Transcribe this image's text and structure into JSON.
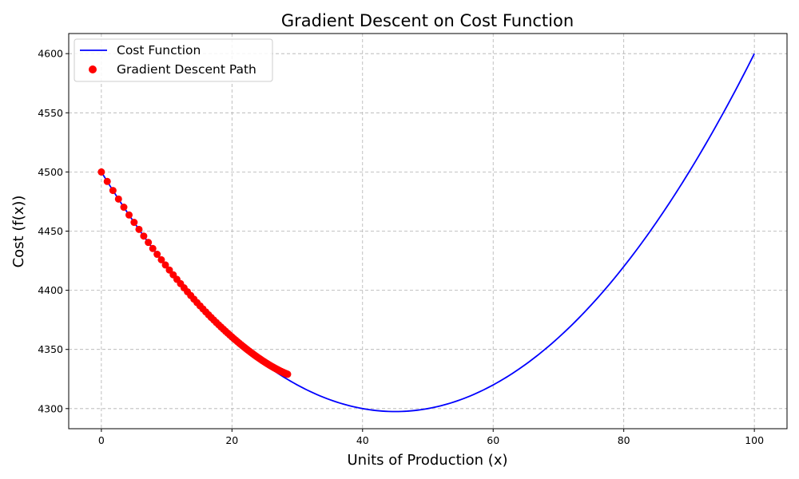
{
  "chart_data": {
    "type": "line",
    "title": "Gradient Descent on Cost Function",
    "xlabel": "Units of Production (x)",
    "ylabel": "Cost (f(x))",
    "xlim": [
      -5,
      105
    ],
    "ylim": [
      4283,
      4617
    ],
    "x_ticks": [
      0,
      20,
      40,
      60,
      80,
      100
    ],
    "y_ticks": [
      4300,
      4350,
      4400,
      4450,
      4500,
      4550,
      4600
    ],
    "x_tick_labels": [
      "0",
      "20",
      "40",
      "60",
      "80",
      "100"
    ],
    "y_tick_labels": [
      "4300",
      "4350",
      "4400",
      "4450",
      "4500",
      "4550",
      "4600"
    ],
    "grid": true,
    "legend_position": "top-left",
    "series": [
      {
        "name": "Cost Function",
        "kind": "line",
        "color": "#0000ff",
        "function": {
          "form": "quadratic",
          "a": 0.1,
          "b": -9,
          "c": 4500
        },
        "x_range": [
          0,
          100
        ]
      },
      {
        "name": "Gradient Descent Path",
        "kind": "scatter",
        "color": "#ff0000",
        "x": [
          0,
          0.9,
          1.773,
          2.62,
          3.441,
          4.238,
          5.011,
          5.761,
          6.488,
          7.193,
          7.877,
          8.541,
          9.185,
          9.809,
          10.415,
          11.002,
          11.572,
          12.125,
          12.661,
          13.181,
          13.686,
          14.175,
          14.65,
          15.11,
          15.557,
          15.99,
          16.41,
          16.818,
          17.213,
          17.597,
          17.969,
          18.33,
          18.68,
          19.02,
          19.349,
          19.669,
          19.979,
          20.279,
          20.571,
          20.854,
          21.128,
          21.394,
          21.652,
          21.903,
          22.146,
          22.381,
          22.61,
          22.831,
          23.046,
          23.254,
          23.456,
          23.652,
          23.843,
          24.027,
          24.206,
          24.379,
          24.547,
          24.71,
          24.869,
          25.022,
          25.171,
          25.316,
          25.456,
          25.592,
          25.724,
          25.852,
          25.976,
          26.097,
          26.213,
          26.327,
          26.436,
          26.543,
          26.646,
          26.746,
          26.843,
          26.938,
          27.029,
          27.118,
          27.204,
          27.287,
          27.368,
          27.447,
          27.523,
          27.597,
          27.669,
          27.738,
          27.806,
          27.872,
          27.935,
          27.997,
          28.057,
          28.115,
          28.172,
          28.227,
          28.28,
          28.332,
          28.382,
          28.43,
          28.478,
          28.523
        ],
        "y": [
          4500,
          4491.98,
          4484.36,
          4477.11,
          4470.21,
          4463.65,
          4457.41,
          4451.47,
          4445.82,
          4440.44,
          4435.32,
          4430.42,
          4425.8,
          4421.39,
          4417.11,
          4413.09,
          4409.24,
          4405.6,
          4402.08,
          4398.75,
          4395.56,
          4392.51,
          4389.6,
          4386.85,
          4384.22,
          4381.69,
          4379.31,
          4377.03,
          4374.85,
          4372.78,
          4370.8,
          4368.91,
          4367.12,
          4365.38,
          4363.74,
          4362.16,
          4360.66,
          4359.2,
          4357.82,
          4356.5,
          4355.23,
          4354.04,
          4352.88,
          4351.76,
          4350.7,
          4349.69,
          4348.72,
          4347.79,
          4346.9,
          4346.05,
          4345.23,
          4344.45,
          4343.71,
          4342.99,
          4342.31,
          4341.66,
          4341.03,
          4340.43,
          4339.86,
          4339.31,
          4338.78,
          4338.27,
          4337.79,
          4337.32,
          4336.88,
          4336.46,
          4336.05,
          4335.66,
          4335.29,
          4334.93,
          4334.59,
          4334.26,
          4333.95,
          4333.65,
          4333.36,
          4333.08,
          4332.82,
          4332.56,
          4332.32,
          4332.09,
          4331.86,
          4331.65,
          4331.44,
          4331.24,
          4331.06,
          4330.88,
          4330.7,
          4330.54,
          4330.38,
          4330.22,
          4330.08,
          4329.94,
          4329.8,
          4329.67,
          4329.55,
          4329.43,
          4329.32,
          4329.21,
          4329.11,
          4329.01
        ]
      }
    ]
  }
}
